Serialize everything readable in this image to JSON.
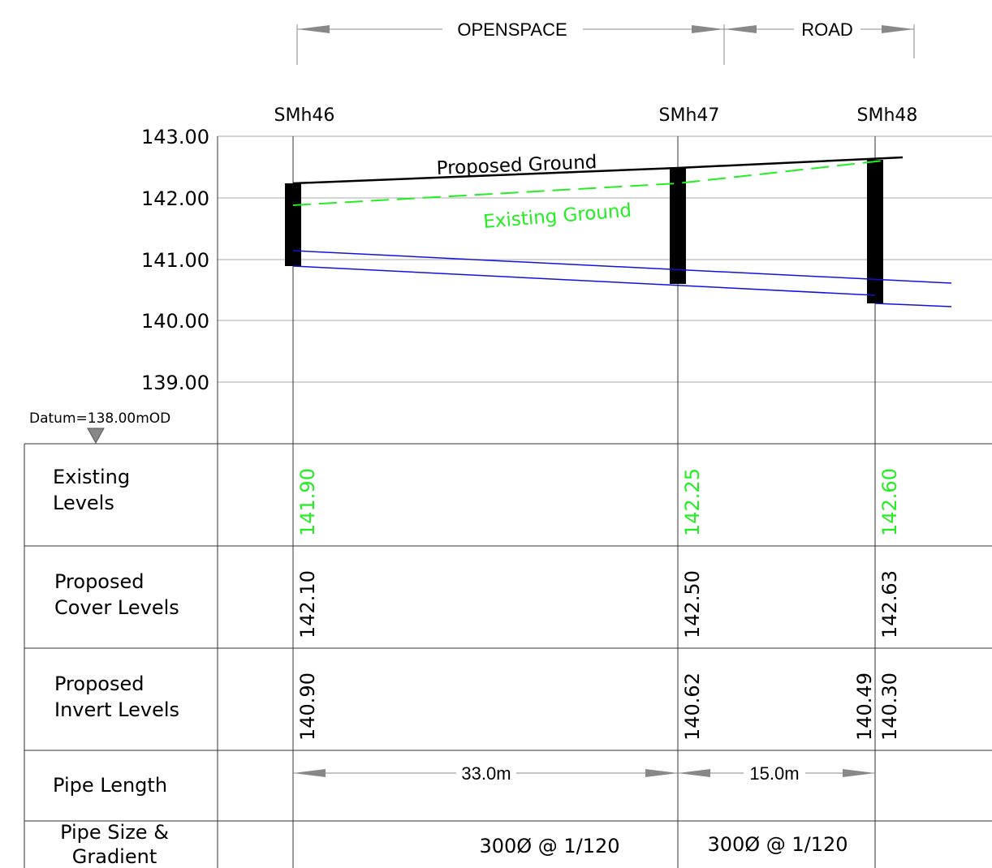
{
  "zones": [
    {
      "label": "OPENSPACE"
    },
    {
      "label": "ROAD"
    }
  ],
  "manholes": [
    {
      "id": "SMh46",
      "chainage": 0,
      "existing": "141.90",
      "cover": "142.10",
      "inverts": [
        "140.90"
      ]
    },
    {
      "id": "SMh47",
      "chainage": 33,
      "existing": "142.25",
      "cover": "142.50",
      "inverts": [
        "140.62"
      ]
    },
    {
      "id": "SMh48",
      "chainage": 48,
      "existing": "142.60",
      "cover": "142.63",
      "inverts": [
        "140.49",
        "140.30"
      ]
    }
  ],
  "axis": {
    "ticks": [
      "143.00",
      "142.00",
      "141.00",
      "140.00",
      "139.00"
    ],
    "datum": "Datum=138.00mOD"
  },
  "ground": {
    "proposed_label": "Proposed Ground",
    "existing_label": "Existing Ground",
    "proposed_color": "#000000",
    "existing_color": "#22ee22"
  },
  "pipe_color": "#1111dd",
  "table": {
    "rows": [
      {
        "label_lines": [
          "Existing",
          "Levels"
        ]
      },
      {
        "label_lines": [
          "Proposed",
          "Cover Levels"
        ]
      },
      {
        "label_lines": [
          "Proposed",
          "Invert Levels"
        ]
      },
      {
        "label_lines": [
          "Pipe Length"
        ]
      },
      {
        "label_lines": [
          "Pipe Size &",
          "Gradient"
        ]
      }
    ],
    "pipe_lengths": [
      "33.0m",
      "15.0m"
    ],
    "pipe_sizes": [
      "300Ø @ 1/120",
      "300Ø @ 1/120"
    ]
  }
}
